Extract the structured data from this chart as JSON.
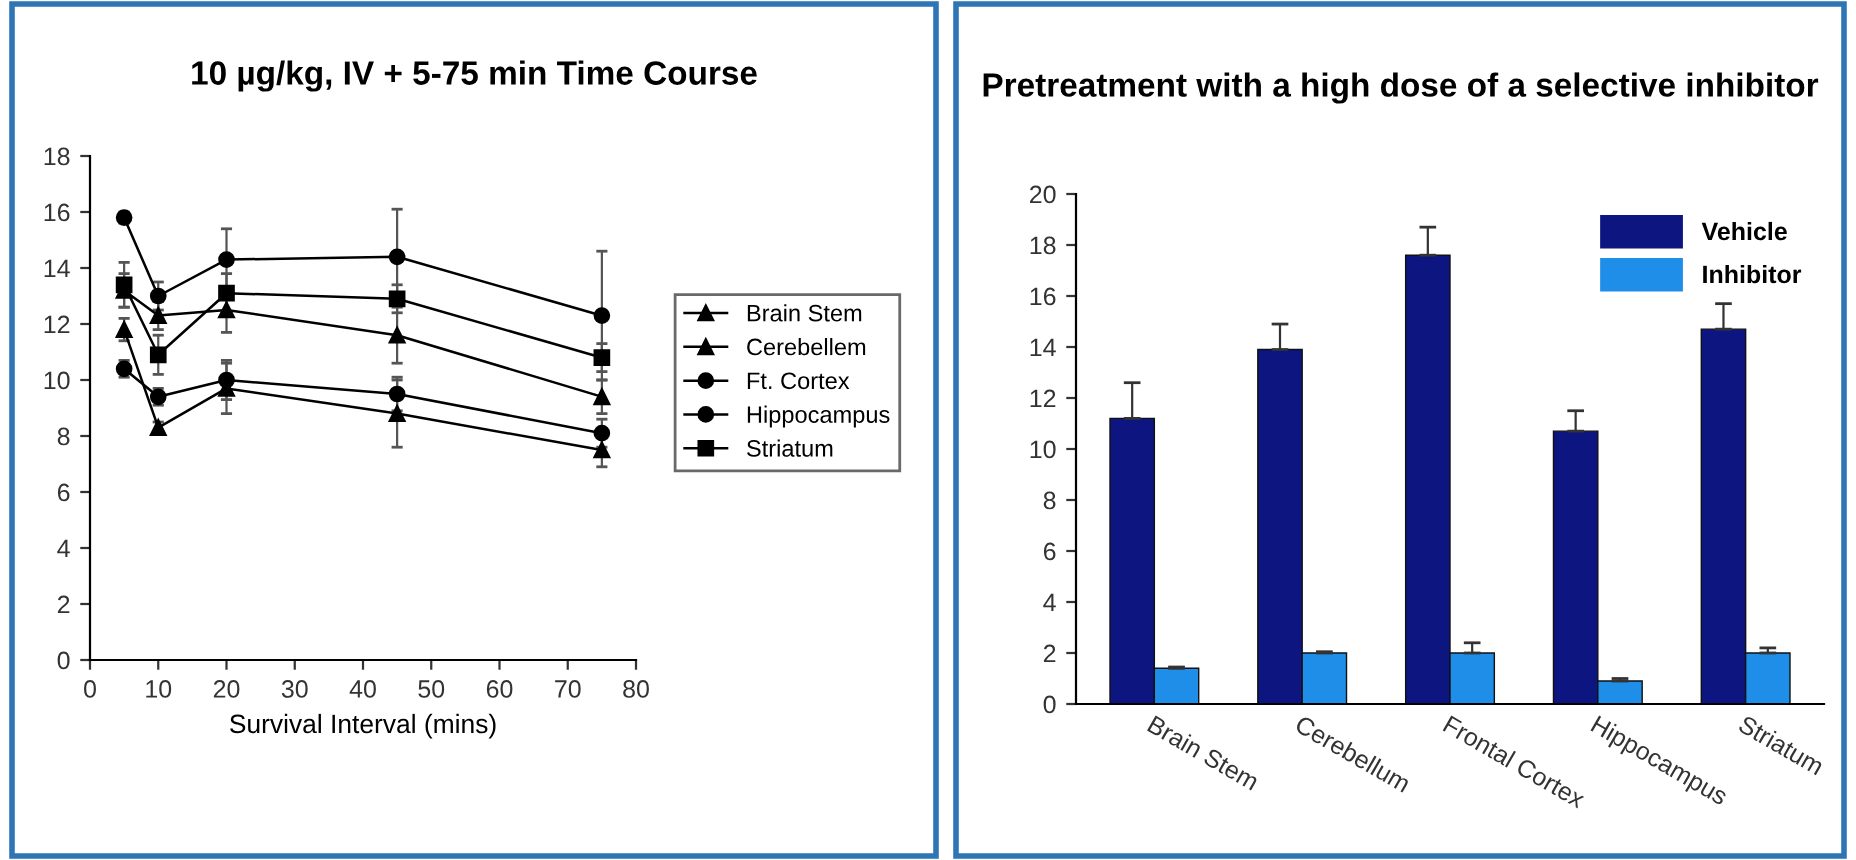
{
  "chart_data": [
    {
      "type": "line",
      "title": "10 µg/kg, IV + 5-75 min Time Course",
      "xlabel": "Survival Interval (mins)",
      "x": [
        5,
        10,
        20,
        45,
        75
      ],
      "xlim": [
        0,
        80
      ],
      "xticks": [
        0,
        10,
        20,
        30,
        40,
        50,
        60,
        70,
        80
      ],
      "ylim": [
        0,
        18
      ],
      "yticks": [
        0,
        2,
        4,
        6,
        8,
        10,
        12,
        14,
        16,
        18
      ],
      "legend": "right",
      "grid": false,
      "line_style": "solid",
      "series": [
        {
          "name": "Brain Stem",
          "color": "#000000",
          "marker": "triangle",
          "values": [
            11.8,
            8.3,
            9.7,
            8.8,
            7.5
          ],
          "errors": [
            0.4,
            0.2,
            0.9,
            1.2,
            0.6
          ]
        },
        {
          "name": "Cerebellem",
          "color": "#000000",
          "marker": "triangle",
          "values": [
            13.2,
            12.3,
            12.5,
            11.6,
            9.4
          ],
          "errors": [
            0.6,
            0.5,
            0.8,
            1.0,
            0.6
          ]
        },
        {
          "name": "Ft. Cortex",
          "color": "#000000",
          "marker": "circle",
          "values": [
            15.8,
            13.0,
            14.3,
            14.4,
            12.3
          ],
          "errors": [
            0.2,
            0.5,
            1.1,
            1.7,
            2.3
          ]
        },
        {
          "name": "Hippocampus",
          "color": "#000000",
          "marker": "circle",
          "values": [
            10.4,
            9.4,
            10.0,
            9.5,
            8.1
          ],
          "errors": [
            0.3,
            0.3,
            0.7,
            0.6,
            0.5
          ]
        },
        {
          "name": "Striatum",
          "color": "#000000",
          "marker": "square",
          "values": [
            13.4,
            10.9,
            13.1,
            12.9,
            10.8
          ],
          "errors": [
            0.8,
            0.7,
            0.7,
            0.5,
            0.5
          ]
        }
      ]
    },
    {
      "type": "bar",
      "title": "Pretreatment with a high dose of a selective inhibitor",
      "categories": [
        "Brain Stem",
        "Cerebellum",
        "Frontal Cortex",
        "Hippocampus",
        "Striatum"
      ],
      "ylim": [
        0,
        20
      ],
      "yticks": [
        0,
        2,
        4,
        6,
        8,
        10,
        12,
        14,
        16,
        18,
        20
      ],
      "legend": "top right",
      "grid": false,
      "series": [
        {
          "name": "Vehicle",
          "color": "#0c1580",
          "values": [
            11.2,
            13.9,
            17.6,
            10.7,
            14.7
          ],
          "errors": [
            1.4,
            1.0,
            1.1,
            0.8,
            1.0
          ]
        },
        {
          "name": "Inhibitor",
          "color": "#1e8ee8",
          "values": [
            1.4,
            2.0,
            2.0,
            0.9,
            2.0
          ],
          "errors": [
            0.05,
            0.05,
            0.4,
            0.1,
            0.2
          ]
        }
      ]
    }
  ]
}
